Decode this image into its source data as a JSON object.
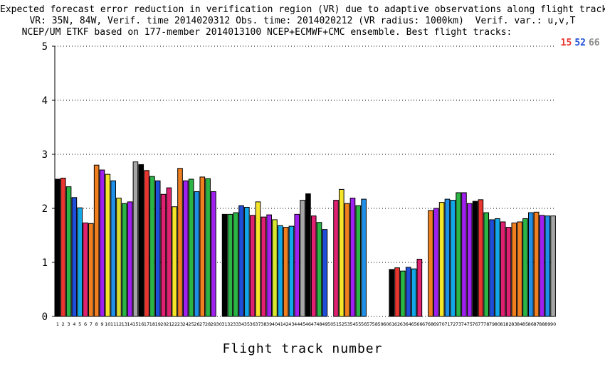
{
  "title_lines": [
    "Expected forecast error reduction in verification region (VR) due to adaptive observations along flight tracks.",
    "VR: 35N, 84W, Verif. time 2014020312 Obs. time: 2014020212 (VR radius: 1000km)  Verif. var.: u,v,T",
    "NCEP/UM ETKF based on 177-member 2014013100 NCEP+ECMWF+CMC ensemble. Best flight tracks:"
  ],
  "best_tracks": [
    {
      "label": "15",
      "color": "#e8352f"
    },
    {
      "label": "52",
      "color": "#1f4fd8"
    },
    {
      "label": "66",
      "color": "#8c8c8c"
    }
  ],
  "chart_data": {
    "type": "bar",
    "xlabel": "Flight track number",
    "ylabel": "",
    "ylim": [
      0,
      5
    ],
    "yticks": [
      0,
      1,
      2,
      3,
      4,
      5
    ],
    "grid": "horizontal dotted",
    "categories": [
      "1",
      "2",
      "3",
      "4",
      "5",
      "6",
      "7",
      "8",
      "9",
      "10",
      "11",
      "12",
      "13",
      "14",
      "15",
      "16",
      "17",
      "18",
      "19",
      "20",
      "21",
      "22",
      "23",
      "24",
      "25",
      "26",
      "27",
      "28",
      "29",
      "30",
      "31",
      "32",
      "33",
      "34",
      "35",
      "36",
      "37",
      "38",
      "39",
      "40",
      "41",
      "42",
      "43",
      "44",
      "45",
      "46",
      "47",
      "48",
      "49",
      "50",
      "51",
      "52",
      "53",
      "54",
      "55",
      "56",
      "57",
      "58",
      "59",
      "60",
      "61",
      "62",
      "63",
      "64",
      "65",
      "66",
      "67",
      "68",
      "69",
      "70",
      "71",
      "72",
      "73",
      "74",
      "75",
      "76",
      "77",
      "78",
      "79",
      "80",
      "81",
      "82",
      "83",
      "84",
      "85",
      "86",
      "87",
      "88",
      "89",
      "90"
    ],
    "values": [
      2.54,
      2.56,
      2.4,
      2.2,
      2.01,
      1.73,
      1.72,
      2.8,
      2.71,
      2.63,
      2.51,
      2.19,
      2.09,
      2.12,
      2.86,
      2.81,
      2.7,
      2.59,
      2.51,
      2.26,
      2.38,
      2.03,
      2.74,
      2.51,
      2.54,
      2.31,
      2.58,
      2.55,
      2.31,
      0,
      1.89,
      1.89,
      1.92,
      2.05,
      2.02,
      1.87,
      2.12,
      1.84,
      1.88,
      1.79,
      1.68,
      1.65,
      1.67,
      1.89,
      2.15,
      2.27,
      1.86,
      1.74,
      1.61,
      0,
      2.15,
      2.35,
      2.09,
      2.19,
      2.05,
      2.17,
      0,
      0,
      0,
      0,
      0.87,
      0.9,
      0.84,
      0.91,
      0.88,
      1.06,
      0,
      1.96,
      2.0,
      2.11,
      2.17,
      2.15,
      2.29,
      2.29,
      2.09,
      2.13,
      2.16,
      1.92,
      1.79,
      1.81,
      1.75,
      1.65,
      1.73,
      1.75,
      1.81,
      1.92,
      1.93,
      1.87,
      1.86,
      1.86
    ],
    "colors": [
      "#000000",
      "#e8352f",
      "#2ab545",
      "#1f4fd8",
      "#12a8e8",
      "#e02070",
      "#f07f1f",
      "#f07f1f",
      "#a020f0",
      "#f5e52a",
      "#1f8fe8",
      "#d8d830",
      "#2ab545",
      "#a020f0",
      "#a6a6a6",
      "#000000",
      "#e8352f",
      "#2ab545",
      "#1f4fd8",
      "#e02070",
      "#e02070",
      "#f5e52a",
      "#f07f1f",
      "#a020f0",
      "#2ab545",
      "#1f8fe8",
      "#f07f1f",
      "#2ab545",
      "#a020f0",
      "#ffffff",
      "#000000",
      "#2ab545",
      "#2ab545",
      "#1f4fd8",
      "#12a8e8",
      "#e02070",
      "#f5e52a",
      "#e02070",
      "#a020f0",
      "#d8e830",
      "#12a8e8",
      "#f07f1f",
      "#12a8e8",
      "#a020f0",
      "#a6a6a6",
      "#000000",
      "#e02070",
      "#2ab545",
      "#1f4fd8",
      "#ffffff",
      "#e02070",
      "#f5e52a",
      "#f07f1f",
      "#a020f0",
      "#2ab545",
      "#1f8fe8",
      "#ffffff",
      "#ffffff",
      "#ffffff",
      "#ffffff",
      "#000000",
      "#e8352f",
      "#2ab545",
      "#1f4fd8",
      "#12a8e8",
      "#e02070",
      "#ffffff",
      "#f07f1f",
      "#a020f0",
      "#f5e52a",
      "#1f8fe8",
      "#12a8e8",
      "#2ab545",
      "#a020f0",
      "#a020f0",
      "#000000",
      "#e8352f",
      "#2ab545",
      "#1f4fd8",
      "#12a8e8",
      "#e02070",
      "#e02070",
      "#f07f1f",
      "#f07f1f",
      "#2ab545",
      "#1f8fe8",
      "#f07f1f",
      "#a020f0",
      "#1f8fe8",
      "#a6a6a6"
    ]
  }
}
